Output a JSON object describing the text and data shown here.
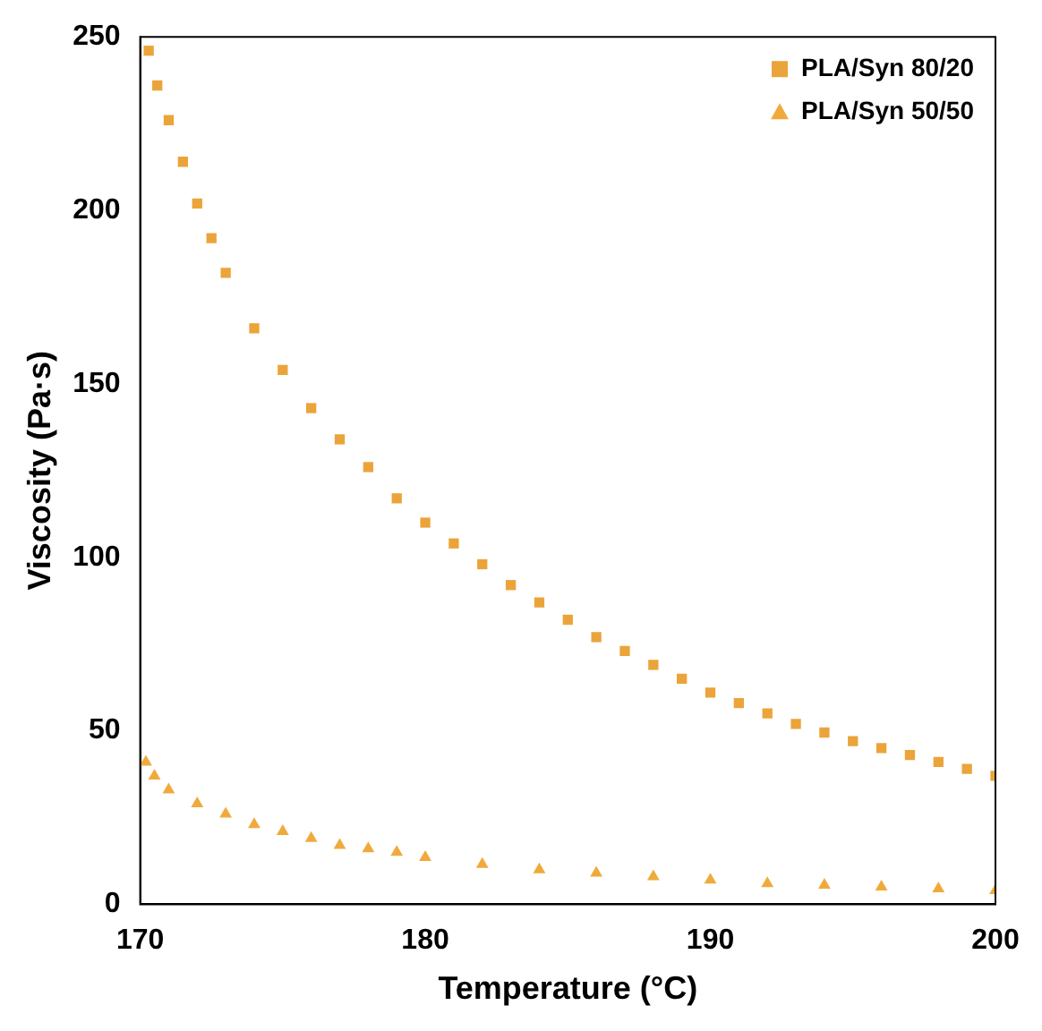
{
  "chart_data": {
    "type": "scatter",
    "xlabel": "Temperature (°C)",
    "ylabel": "Viscosity (Pa·s)",
    "xlim": [
      170,
      200
    ],
    "xticks": [
      170,
      180,
      190,
      200
    ],
    "ylim": [
      0,
      250
    ],
    "yticks": [
      0,
      50,
      100,
      150,
      200,
      250
    ],
    "grid": false,
    "legend": "top right",
    "series": [
      {
        "name": "PLA/Syn 80/20",
        "color": "#eba43a",
        "marker": "square",
        "x": [
          170.3,
          170.6,
          171,
          171.5,
          172,
          172.5,
          173,
          174,
          175,
          176,
          177,
          178,
          179,
          180,
          181,
          182,
          183,
          184,
          185,
          186,
          187,
          188,
          189,
          190,
          191,
          192,
          193,
          194,
          195,
          196,
          197,
          198,
          199,
          200
        ],
        "values": [
          246,
          236,
          226,
          214,
          202,
          192,
          182,
          166,
          154,
          143,
          134,
          126,
          117,
          110,
          104,
          98,
          92,
          87,
          82,
          77,
          73,
          69,
          65,
          61,
          58,
          55,
          52,
          49.5,
          47,
          45,
          43,
          41,
          39,
          37
        ]
      },
      {
        "name": "PLA/Syn 50/50",
        "color": "#f0aa3c",
        "marker": "triangle",
        "x": [
          170.2,
          170.5,
          171,
          172,
          173,
          174,
          175,
          176,
          177,
          178,
          179,
          180,
          182,
          184,
          186,
          188,
          190,
          192,
          194,
          196,
          198,
          200
        ],
        "values": [
          41,
          37,
          33,
          29,
          26,
          23,
          21,
          19,
          17,
          16,
          15,
          13.5,
          11.5,
          10,
          9,
          8,
          7,
          6,
          5.5,
          5,
          4.5,
          4
        ]
      }
    ]
  }
}
